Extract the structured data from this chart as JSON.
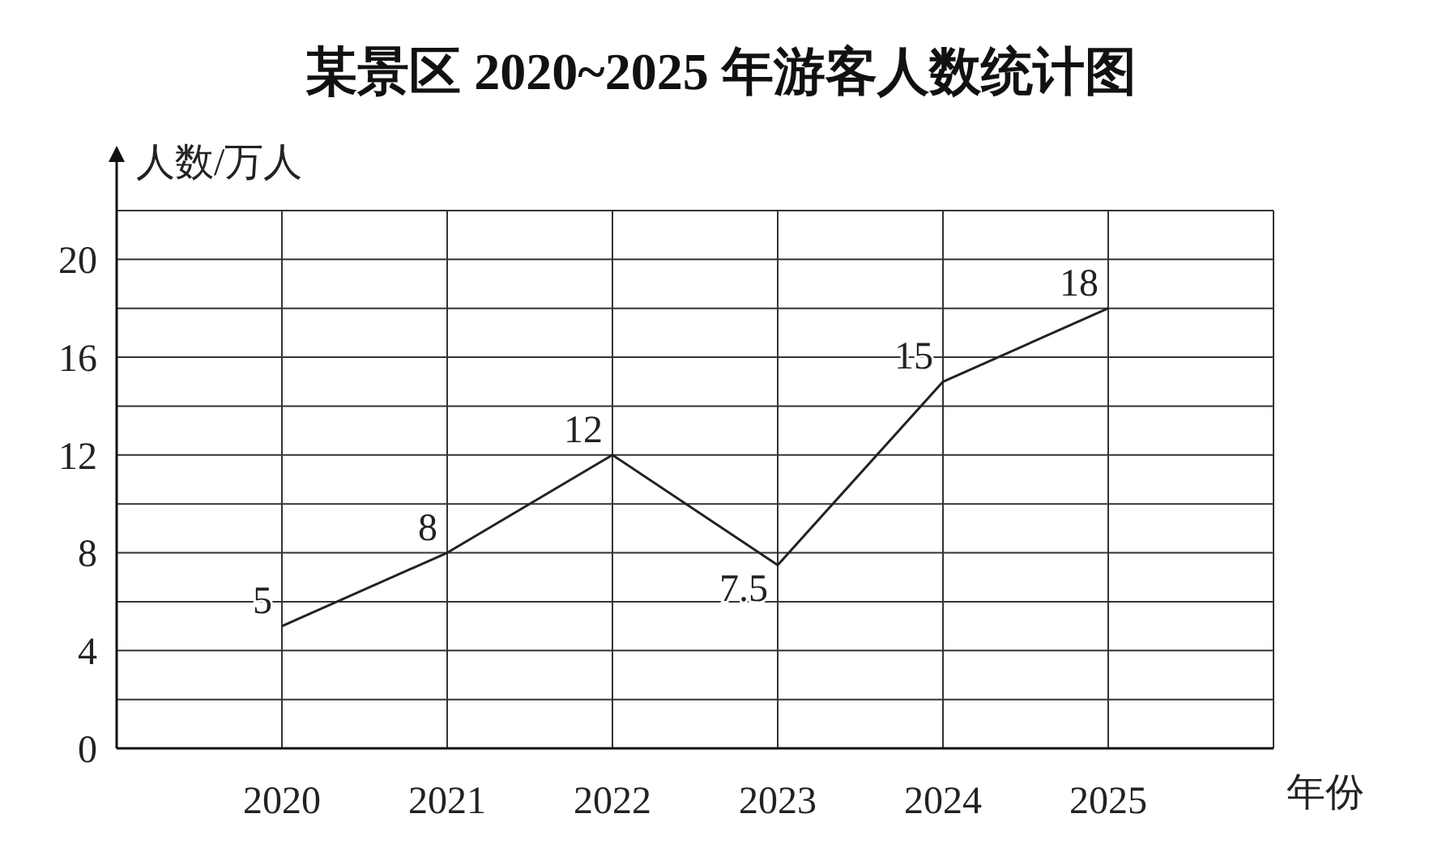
{
  "chart_data": {
    "type": "line",
    "title": "某景区 2020~2025 年游客人数统计图",
    "xlabel": "年份",
    "ylabel": "人数/万人",
    "x": [
      2020,
      2021,
      2022,
      2023,
      2024,
      2025
    ],
    "series": [
      {
        "color": "#222222",
        "values": [
          5,
          8,
          12,
          7.5,
          15,
          18
        ]
      }
    ],
    "xlim": [
      2019,
      2026
    ],
    "xticks": [
      {
        "value": 2019,
        "label": null
      },
      2020,
      2021,
      2022,
      2023,
      2024,
      2025,
      {
        "value": 2026,
        "label": null
      }
    ],
    "ylim": [
      0,
      22
    ],
    "yticks": [
      0,
      {
        "value": 2,
        "label": null
      },
      4,
      {
        "value": 6,
        "label": null
      },
      8,
      {
        "value": 10,
        "label": null
      },
      12,
      {
        "value": 14,
        "label": null
      },
      16,
      {
        "value": 18,
        "label": null
      },
      20,
      {
        "value": 22,
        "label": null
      }
    ],
    "grid": true,
    "data_labels": true,
    "marker": "none",
    "line_style": "solid"
  }
}
